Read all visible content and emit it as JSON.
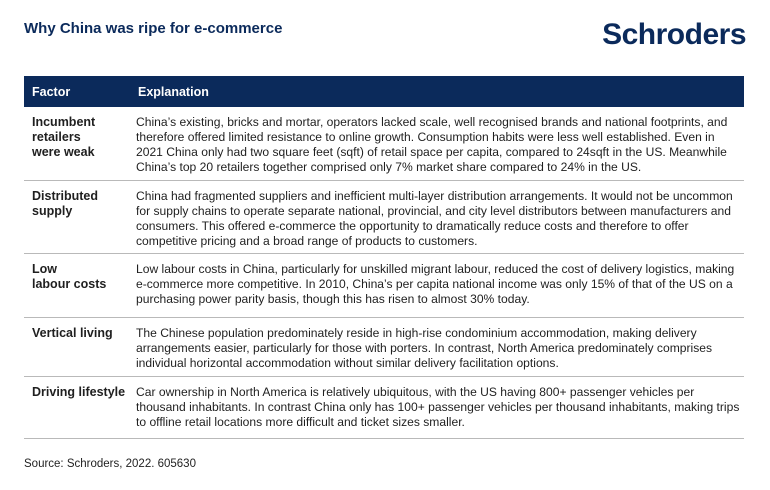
{
  "header": {
    "title": "Why China was ripe for e-commerce",
    "logo_text": "Schroders"
  },
  "table": {
    "columns": [
      "Factor",
      "Explanation"
    ],
    "rows": [
      {
        "factor": "Incumbent\nretailers\nwere weak",
        "explanation": "China’s existing, bricks and mortar, operators lacked scale, well recognised brands and national footprints, and therefore offered limited resistance to online growth. Consumption habits were less well established. Even in 2021 China only had two square feet (sqft) of retail space per capita, compared to 24sqft in the US. Meanwhile China’s top 20 retailers together comprised only 7% market share compared to 24% in the US."
      },
      {
        "factor": "Distributed\nsupply",
        "explanation": "China had fragmented suppliers and inefficient multi-layer distribution arrangements. It would not be uncommon for supply chains to operate separate national, provincial, and city level distributors between manufacturers and consumers. This offered e-commerce the opportunity to dramatically reduce costs and therefore to offer competitive pricing and a broad range of products to customers."
      },
      {
        "factor": "Low\nlabour costs",
        "explanation": "Low labour costs in China, particularly for unskilled migrant labour, reduced the cost of delivery logistics, making e-commerce more competitive. In 2010, China’s per capita national income was only 15% of that of the US on a purchasing power parity basis, though this has risen to almost 30% today."
      },
      {
        "factor": "Vertical living",
        "explanation": "The Chinese population predominately reside in high-rise condominium accommodation, making delivery arrangements easier, particularly for those with porters. In contrast, North America predominately comprises individual horizontal accommodation without similar delivery facilitation options."
      },
      {
        "factor": "Driving lifestyle",
        "explanation": "Car ownership in North America is relatively ubiquitous, with the US having 800+ passenger vehicles per thousand inhabitants. In contrast China only has 100+ passenger vehicles per thousand inhabitants, making trips to offline retail locations more difficult and ticket sizes smaller."
      }
    ]
  },
  "footer": {
    "source": "Source: Schroders, 2022. 605630"
  },
  "colors": {
    "brand_navy": "#0b2a5b",
    "divider": "#b9b9b9"
  }
}
